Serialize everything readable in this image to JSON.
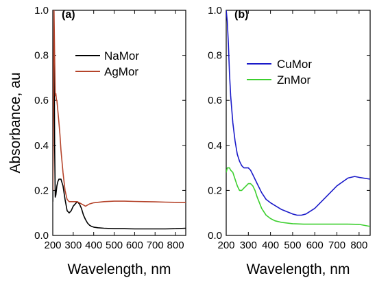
{
  "ylabel": "Absorbance, au",
  "chart_data": [
    {
      "type": "line",
      "panel_label": "(a)",
      "xlabel": "Wavelength, nm",
      "xlim": [
        200,
        850
      ],
      "ylim": [
        0,
        1.0
      ],
      "xticks": [
        200,
        300,
        400,
        500,
        600,
        700,
        800
      ],
      "yticks": [
        0.0,
        0.2,
        0.4,
        0.6,
        0.8,
        1.0
      ],
      "ytick_labels": [
        "0.0",
        "0.2",
        "0.4",
        "0.6",
        "0.8",
        "1.0"
      ],
      "legend_position": "top-right",
      "series": [
        {
          "name": "NaMor",
          "color": "#000000",
          "x": [
            200,
            203,
            206,
            209,
            212,
            215,
            220,
            225,
            230,
            240,
            250,
            260,
            270,
            280,
            290,
            300,
            310,
            320,
            330,
            340,
            350,
            360,
            370,
            380,
            390,
            400,
            420,
            450,
            500,
            550,
            600,
            650,
            700,
            750,
            800,
            850
          ],
          "y": [
            0.15,
            0.55,
            0.9,
            0.4,
            0.17,
            0.18,
            0.22,
            0.24,
            0.25,
            0.25,
            0.22,
            0.16,
            0.11,
            0.1,
            0.11,
            0.13,
            0.14,
            0.15,
            0.14,
            0.12,
            0.09,
            0.07,
            0.055,
            0.045,
            0.04,
            0.037,
            0.034,
            0.032,
            0.03,
            0.03,
            0.029,
            0.029,
            0.029,
            0.029,
            0.03,
            0.032
          ]
        },
        {
          "name": "AgMor",
          "color": "#b5442b",
          "x": [
            200,
            203,
            206,
            209,
            212,
            215,
            218,
            220,
            225,
            230,
            235,
            240,
            250,
            260,
            270,
            280,
            290,
            300,
            310,
            320,
            330,
            340,
            350,
            360,
            370,
            380,
            400,
            450,
            500,
            550,
            600,
            650,
            700,
            750,
            800,
            850
          ],
          "y": [
            0.2,
            0.6,
            1.0,
            0.8,
            0.62,
            0.63,
            0.6,
            0.6,
            0.55,
            0.5,
            0.45,
            0.38,
            0.28,
            0.2,
            0.16,
            0.15,
            0.15,
            0.15,
            0.15,
            0.15,
            0.145,
            0.14,
            0.135,
            0.13,
            0.135,
            0.14,
            0.145,
            0.15,
            0.152,
            0.152,
            0.151,
            0.15,
            0.149,
            0.148,
            0.147,
            0.146
          ]
        }
      ]
    },
    {
      "type": "line",
      "panel_label": "(b)",
      "xlabel": "Wavelength, nm",
      "xlim": [
        200,
        850
      ],
      "ylim": [
        0,
        1.0
      ],
      "xticks": [
        200,
        300,
        400,
        500,
        600,
        700,
        800
      ],
      "yticks": [
        0.0,
        0.2,
        0.4,
        0.6,
        0.8,
        1.0
      ],
      "ytick_labels": [
        "0.0",
        "0.2",
        "0.4",
        "0.6",
        "0.8",
        "1.0"
      ],
      "legend_position": "top-right",
      "series": [
        {
          "name": "CuMor",
          "color": "#1a1ac9",
          "x": [
            200,
            205,
            210,
            215,
            220,
            230,
            240,
            250,
            260,
            270,
            280,
            290,
            300,
            310,
            320,
            340,
            360,
            380,
            400,
            450,
            500,
            520,
            540,
            560,
            600,
            650,
            700,
            750,
            780,
            800,
            850
          ],
          "y": [
            1.0,
            0.95,
            0.85,
            0.72,
            0.62,
            0.5,
            0.42,
            0.36,
            0.33,
            0.31,
            0.3,
            0.3,
            0.3,
            0.29,
            0.27,
            0.23,
            0.19,
            0.16,
            0.145,
            0.115,
            0.095,
            0.09,
            0.09,
            0.095,
            0.12,
            0.17,
            0.22,
            0.255,
            0.262,
            0.258,
            0.25
          ]
        },
        {
          "name": "ZnMor",
          "color": "#3ccf2e",
          "x": [
            200,
            205,
            210,
            215,
            220,
            230,
            240,
            250,
            260,
            270,
            280,
            290,
            300,
            310,
            320,
            330,
            340,
            360,
            380,
            400,
            420,
            450,
            500,
            550,
            600,
            650,
            700,
            750,
            800,
            850
          ],
          "y": [
            0.28,
            0.3,
            0.3,
            0.3,
            0.29,
            0.28,
            0.25,
            0.22,
            0.2,
            0.2,
            0.21,
            0.22,
            0.23,
            0.23,
            0.22,
            0.2,
            0.17,
            0.12,
            0.09,
            0.075,
            0.065,
            0.058,
            0.052,
            0.05,
            0.05,
            0.05,
            0.05,
            0.05,
            0.049,
            0.04
          ]
        }
      ]
    }
  ]
}
